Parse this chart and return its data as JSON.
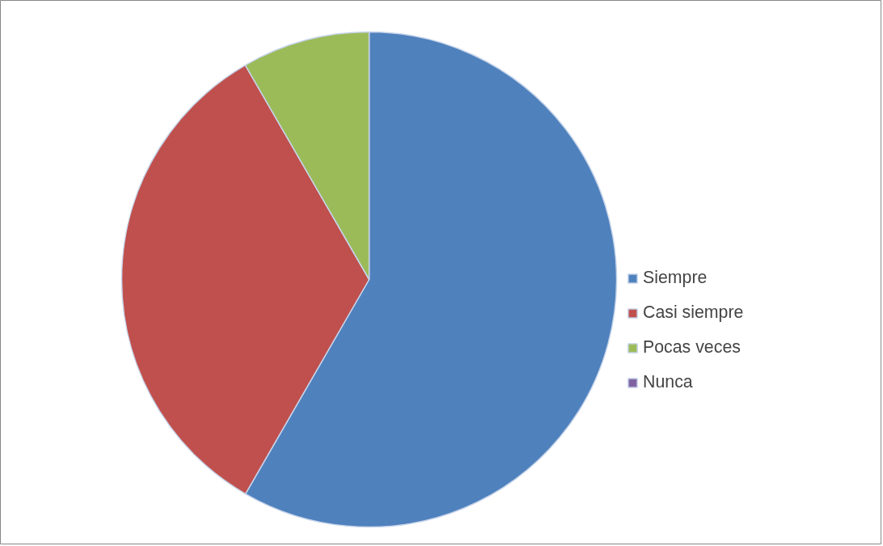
{
  "chart_data": {
    "type": "pie",
    "categories": [
      "Siempre",
      "Casi siempre",
      "Pocas veces",
      "Nunca"
    ],
    "values": [
      58.33,
      33.33,
      8.34,
      0
    ],
    "colors": [
      "#4f81bd",
      "#c0504d",
      "#9bbb59",
      "#8064a2"
    ],
    "legend": "right"
  }
}
